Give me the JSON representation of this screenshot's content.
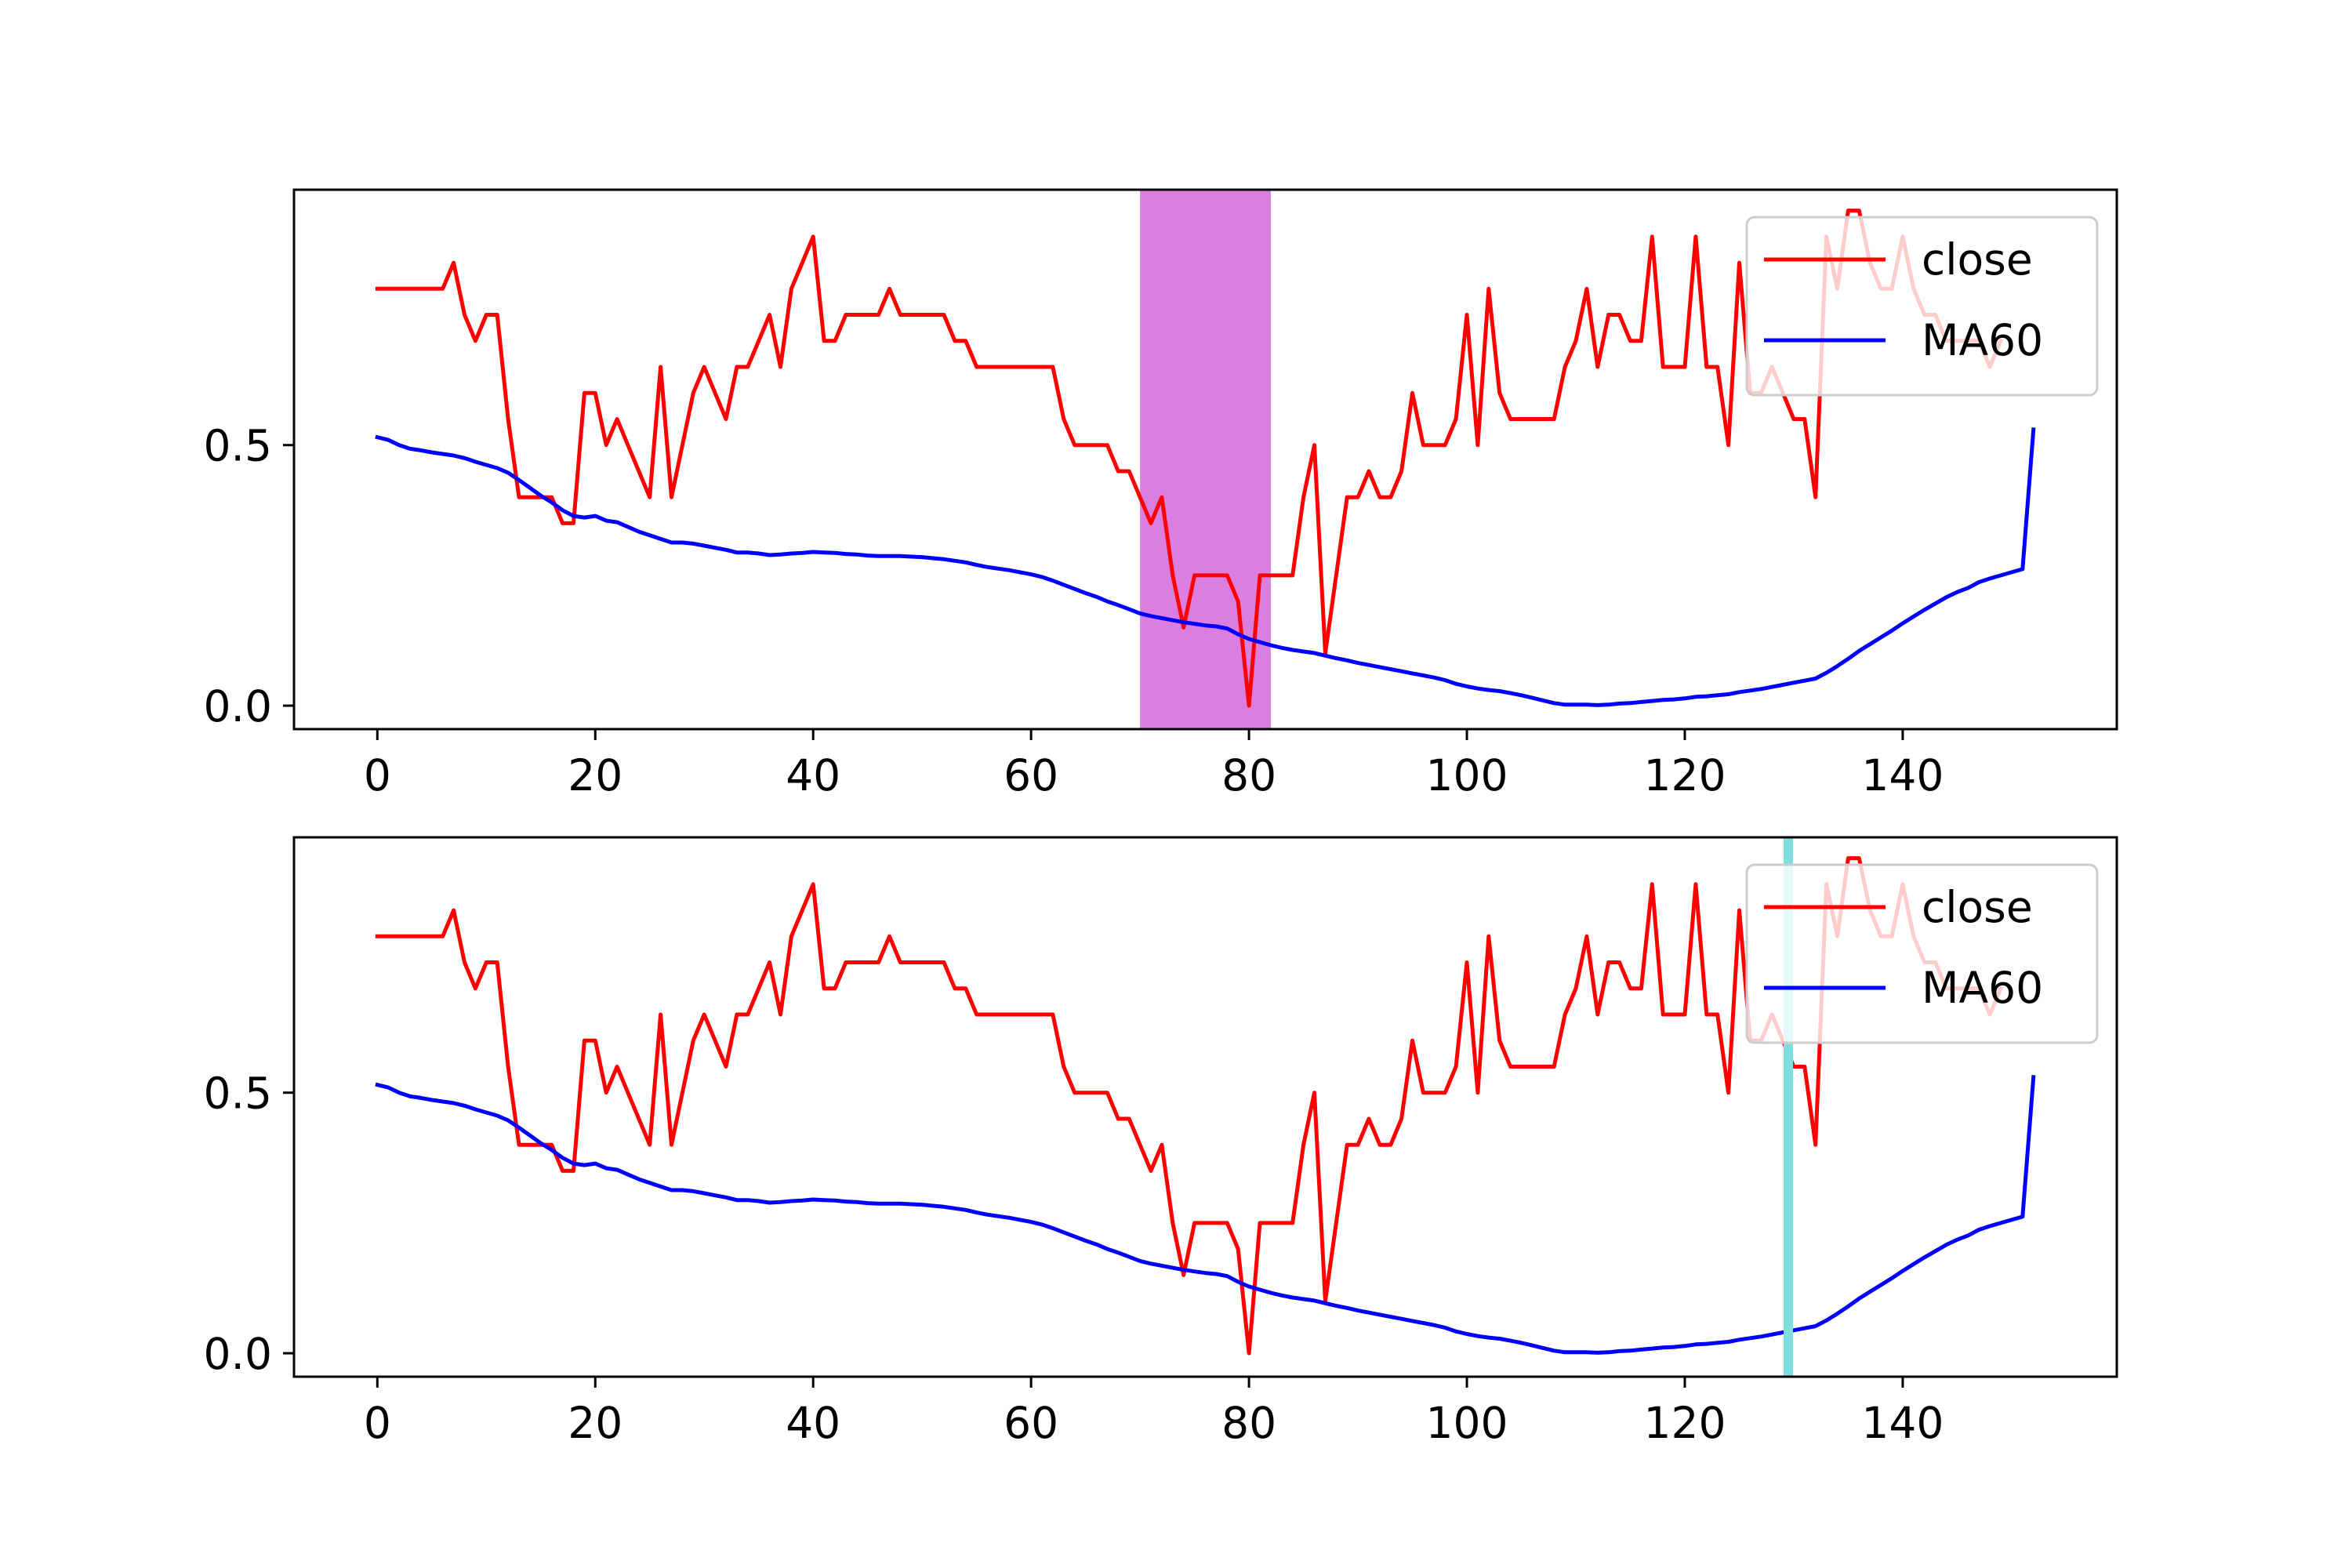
{
  "chart_data": [
    {
      "type": "line",
      "xlim": [
        -7.65,
        159.65
      ],
      "ylim": [
        -0.045,
        0.99
      ],
      "xticks": [
        0,
        20,
        40,
        60,
        80,
        100,
        120,
        140
      ],
      "yticks": [
        0.0,
        0.5
      ],
      "xtick_labels": [
        "0",
        "20",
        "40",
        "60",
        "80",
        "100",
        "120",
        "140"
      ],
      "ytick_labels": [
        "0.0",
        "0.5"
      ],
      "legend_position": "upper-right",
      "shaded_span": {
        "x_start": 70,
        "x_end": 82,
        "color": "#da7fdf"
      },
      "series": [
        {
          "name": "close",
          "color": "#ff0000",
          "x": [
            0,
            1,
            2,
            3,
            4,
            5,
            6,
            7,
            8,
            9,
            10,
            11,
            12,
            13,
            14,
            15,
            16,
            17,
            18,
            19,
            20,
            21,
            22,
            23,
            24,
            25,
            26,
            27,
            28,
            29,
            30,
            31,
            32,
            33,
            34,
            35,
            36,
            37,
            38,
            39,
            40,
            41,
            42,
            43,
            44,
            45,
            46,
            47,
            48,
            49,
            50,
            51,
            52,
            53,
            54,
            55,
            56,
            57,
            58,
            59,
            60,
            61,
            62,
            63,
            64,
            65,
            66,
            67,
            68,
            69,
            70,
            71,
            72,
            73,
            74,
            75,
            76,
            77,
            78,
            79,
            80,
            81,
            82,
            83,
            84,
            85,
            86,
            87,
            88,
            89,
            90,
            91,
            92,
            93,
            94,
            95,
            96,
            97,
            98,
            99,
            100,
            101,
            102,
            103,
            104,
            105,
            106,
            107,
            108,
            109,
            110,
            111,
            112,
            113,
            114,
            115,
            116,
            117,
            118,
            119,
            120,
            121,
            122,
            123,
            124,
            125,
            126,
            127,
            128,
            129,
            130,
            131,
            132,
            133,
            134,
            135,
            136,
            137,
            138,
            139,
            140,
            141,
            142,
            143,
            144,
            145,
            146,
            147,
            148,
            149
          ],
          "y": [
            0.8,
            0.8,
            0.8,
            0.8,
            0.8,
            0.8,
            0.8,
            0.85,
            0.75,
            0.7,
            0.75,
            0.75,
            0.55,
            0.4,
            0.4,
            0.4,
            0.4,
            0.35,
            0.35,
            0.6,
            0.6,
            0.5,
            0.55,
            0.5,
            0.45,
            0.4,
            0.65,
            0.4,
            0.5,
            0.6,
            0.65,
            0.6,
            0.55,
            0.65,
            0.65,
            0.7,
            0.75,
            0.65,
            0.8,
            0.85,
            0.9,
            0.7,
            0.7,
            0.75,
            0.75,
            0.75,
            0.75,
            0.8,
            0.75,
            0.75,
            0.75,
            0.75,
            0.75,
            0.7,
            0.7,
            0.65,
            0.65,
            0.65,
            0.65,
            0.65,
            0.65,
            0.65,
            0.65,
            0.55,
            0.5,
            0.5,
            0.5,
            0.5,
            0.45,
            0.45,
            0.4,
            0.35,
            0.4,
            0.25,
            0.15,
            0.25,
            0.25,
            0.25,
            0.25,
            0.2,
            0.0,
            0.25,
            0.25,
            0.25,
            0.25,
            0.4,
            0.5,
            0.1,
            0.25,
            0.4,
            0.4,
            0.45,
            0.4,
            0.4,
            0.45,
            0.6,
            0.5,
            0.5,
            0.5,
            0.55,
            0.75,
            0.5,
            0.8,
            0.6,
            0.55,
            0.55,
            0.55,
            0.55,
            0.55,
            0.65,
            0.7,
            0.8,
            0.65,
            0.75,
            0.75,
            0.7,
            0.7,
            0.9,
            0.65,
            0.65,
            0.65,
            0.9,
            0.65,
            0.65,
            0.5,
            0.85,
            0.6,
            0.6,
            0.65,
            0.6,
            0.55,
            0.55,
            0.4,
            0.9,
            0.8,
            0.95,
            0.95,
            0.85,
            0.8,
            0.8,
            0.9,
            0.8,
            0.75,
            0.75,
            0.7,
            0.7,
            0.7,
            0.7,
            0.65,
            0.7
          ]
        },
        {
          "name": "MA60",
          "color": "#0000ff",
          "x": [
            0,
            1,
            2,
            3,
            4,
            5,
            6,
            7,
            8,
            9,
            10,
            11,
            12,
            13,
            14,
            15,
            16,
            17,
            18,
            19,
            20,
            21,
            22,
            23,
            24,
            25,
            26,
            27,
            28,
            29,
            30,
            31,
            32,
            33,
            34,
            35,
            36,
            37,
            38,
            39,
            40,
            41,
            42,
            43,
            44,
            45,
            46,
            47,
            48,
            49,
            50,
            51,
            52,
            53,
            54,
            55,
            56,
            57,
            58,
            59,
            60,
            61,
            62,
            63,
            64,
            65,
            66,
            67,
            68,
            69,
            70,
            71,
            72,
            73,
            74,
            75,
            76,
            77,
            78,
            79,
            80,
            81,
            82,
            83,
            84,
            85,
            86,
            87,
            88,
            89,
            90,
            91,
            92,
            93,
            94,
            95,
            96,
            97,
            98,
            99,
            100,
            101,
            102,
            103,
            104,
            105,
            106,
            107,
            108,
            109,
            110,
            111,
            112,
            113,
            114,
            115,
            116,
            117,
            118,
            119,
            120,
            121,
            122,
            123,
            124,
            125,
            126,
            127,
            128,
            129,
            130,
            131,
            132,
            133,
            134,
            135,
            136,
            137,
            138,
            139,
            140,
            141,
            142,
            143,
            144,
            145,
            146,
            147,
            148,
            149,
            150,
            151,
            152
          ],
          "y": [
            0.515,
            0.51,
            0.5,
            0.493,
            0.49,
            0.486,
            0.483,
            0.48,
            0.475,
            0.468,
            0.462,
            0.456,
            0.447,
            0.433,
            0.418,
            0.403,
            0.39,
            0.375,
            0.364,
            0.361,
            0.364,
            0.355,
            0.352,
            0.343,
            0.334,
            0.327,
            0.32,
            0.313,
            0.313,
            0.311,
            0.307,
            0.303,
            0.299,
            0.294,
            0.294,
            0.292,
            0.289,
            0.29,
            0.292,
            0.293,
            0.295,
            0.294,
            0.293,
            0.291,
            0.29,
            0.288,
            0.287,
            0.287,
            0.287,
            0.286,
            0.285,
            0.283,
            0.281,
            0.278,
            0.275,
            0.27,
            0.266,
            0.263,
            0.26,
            0.256,
            0.252,
            0.247,
            0.24,
            0.232,
            0.224,
            0.216,
            0.209,
            0.2,
            0.193,
            0.185,
            0.177,
            0.172,
            0.168,
            0.164,
            0.16,
            0.157,
            0.154,
            0.152,
            0.148,
            0.137,
            0.128,
            0.122,
            0.116,
            0.111,
            0.107,
            0.104,
            0.101,
            0.096,
            0.091,
            0.087,
            0.082,
            0.078,
            0.074,
            0.07,
            0.066,
            0.062,
            0.058,
            0.054,
            0.049,
            0.042,
            0.037,
            0.033,
            0.03,
            0.028,
            0.024,
            0.02,
            0.015,
            0.01,
            0.005,
            0.002,
            0.002,
            0.002,
            0.001,
            0.002,
            0.004,
            0.005,
            0.007,
            0.009,
            0.011,
            0.012,
            0.014,
            0.017,
            0.018,
            0.02,
            0.022,
            0.026,
            0.029,
            0.032,
            0.036,
            0.04,
            0.044,
            0.048,
            0.052,
            0.063,
            0.076,
            0.09,
            0.105,
            0.118,
            0.131,
            0.144,
            0.158,
            0.171,
            0.184,
            0.196,
            0.208,
            0.218,
            0.226,
            0.237,
            0.244,
            0.25,
            0.256,
            0.262,
            0.53
          ]
        }
      ]
    },
    {
      "type": "line",
      "xlim": [
        -7.65,
        159.65
      ],
      "ylim": [
        -0.045,
        0.99
      ],
      "xticks": [
        0,
        20,
        40,
        60,
        80,
        100,
        120,
        140
      ],
      "yticks": [
        0.0,
        0.5
      ],
      "xtick_labels": [
        "0",
        "20",
        "40",
        "60",
        "80",
        "100",
        "120",
        "140"
      ],
      "ytick_labels": [
        "0.0",
        "0.5"
      ],
      "legend_position": "upper-right",
      "vertical_line": {
        "x": 129.5,
        "color": "#7fdfdf"
      },
      "series": [
        {
          "name": "close",
          "color": "#ff0000",
          "same_as_chart": 0
        },
        {
          "name": "MA60",
          "color": "#0000ff",
          "same_as_chart": 0
        }
      ]
    }
  ],
  "legend": {
    "entries": [
      {
        "label": "close",
        "color": "#ff0000"
      },
      {
        "label": "MA60",
        "color": "#0000ff"
      }
    ]
  }
}
